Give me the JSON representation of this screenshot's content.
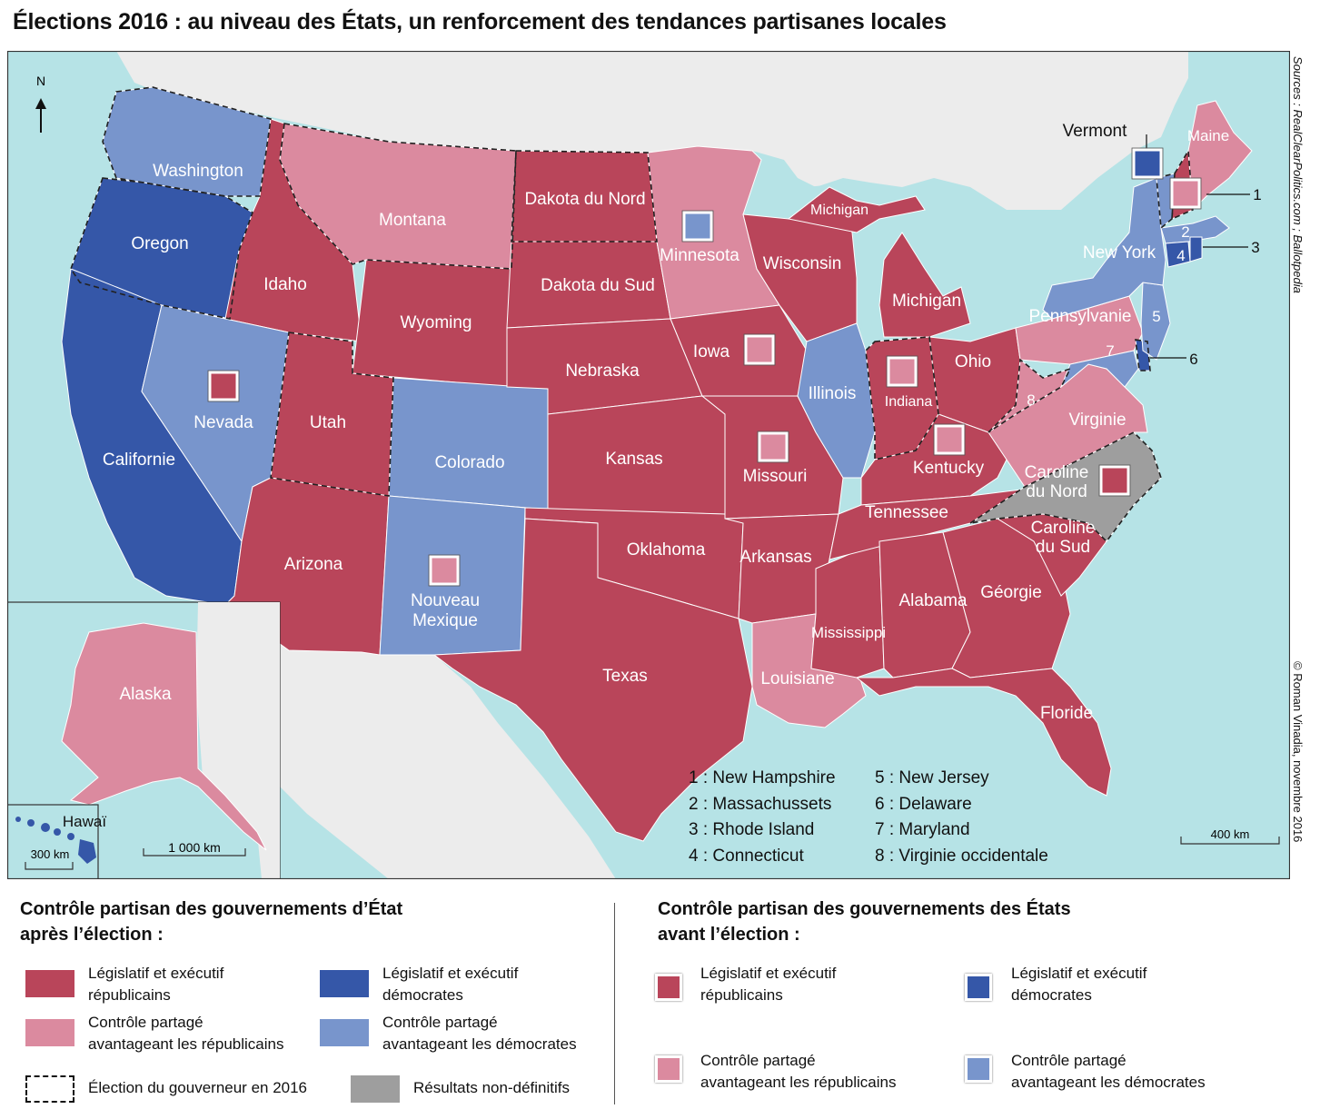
{
  "title": "Élections 2016 : au niveau des États, un renforcement des tendances partisanes locales",
  "sources": "Sources : RealClearPolitics.com ; Ballotpedia",
  "copyright": "© Roman Vinadia, novembre 2016",
  "colors": {
    "rep_full": "#b9455a",
    "rep_shared": "#db8a9f",
    "dem_full": "#3557a8",
    "dem_shared": "#7895cc",
    "undetermined": "#9e9e9e",
    "water": "#b6e3e6",
    "land_other": "#ececec"
  },
  "map": {
    "north": "N",
    "inset_alaska": "Alaska",
    "inset_hawaii": "Hawaï",
    "scale_main": "1 000 km",
    "scale_hawaii": "300 km",
    "scale_ne": "400 km",
    "states": {
      "washington": "Washington",
      "oregon": "Oregon",
      "california": "Californie",
      "idaho": "Idaho",
      "nevada": "Nevada",
      "montana": "Montana",
      "wyoming": "Wyoming",
      "utah": "Utah",
      "arizona": "Arizona",
      "colorado": "Colorado",
      "new_mexico_1": "Nouveau",
      "new_mexico_2": "Mexique",
      "north_dakota": "Dakota du Nord",
      "south_dakota": "Dakota du Sud",
      "nebraska": "Nebraska",
      "kansas": "Kansas",
      "oklahoma": "Oklahoma",
      "texas": "Texas",
      "minnesota": "Minnesota",
      "iowa": "Iowa",
      "missouri": "Missouri",
      "arkansas": "Arkansas",
      "louisiana": "Louisiane",
      "wisconsin": "Wisconsin",
      "illinois": "Illinois",
      "michigan": "Michigan",
      "michigan_up": "Michigan",
      "indiana": "Indiana",
      "ohio": "Ohio",
      "kentucky": "Kentucky",
      "tennessee": "Tennessee",
      "mississippi": "Mississippi",
      "alabama": "Alabama",
      "georgia": "Géorgie",
      "florida": "Floride",
      "sc_1": "Caroline",
      "sc_2": "du Sud",
      "nc_1": "Caroline",
      "nc_2": "du Nord",
      "virginia": "Virginie",
      "pennsylvania": "Pennsylvanie",
      "new_york": "New York",
      "vermont": "Vermont",
      "maine": "Maine",
      "n1": "1",
      "n2": "2",
      "n3": "3",
      "n4": "4",
      "n5": "5",
      "n6": "6",
      "n7": "7",
      "n8": "8"
    },
    "key": [
      "1 : New Hampshire",
      "2 : Massachussets",
      "3 : Rhode Island",
      "4 : Connecticut",
      "5 : New Jersey",
      "6 : Delaware",
      "7 : Maryland",
      "8 : Virginie occidentale"
    ]
  },
  "legend": {
    "after_title_1": "Contrôle partisan des gouvernements d’État",
    "after_title_2": "après l’élection :",
    "before_title_1": "Contrôle partisan des gouvernements des États",
    "before_title_2": "avant l’élection :",
    "rep_full_1": "Législatif et exécutif",
    "rep_full_2": "républicains",
    "dem_full_1": "Législatif et exécutif",
    "dem_full_2": "démocrates",
    "rep_shared_1": "Contrôle partagé",
    "rep_shared_2": "avantageant les républicains",
    "dem_shared_1": "Contrôle partagé",
    "dem_shared_2": "avantageant les démocrates",
    "governor_election": "Élection du gouverneur en 2016",
    "undetermined": "Résultats non-définitifs"
  }
}
